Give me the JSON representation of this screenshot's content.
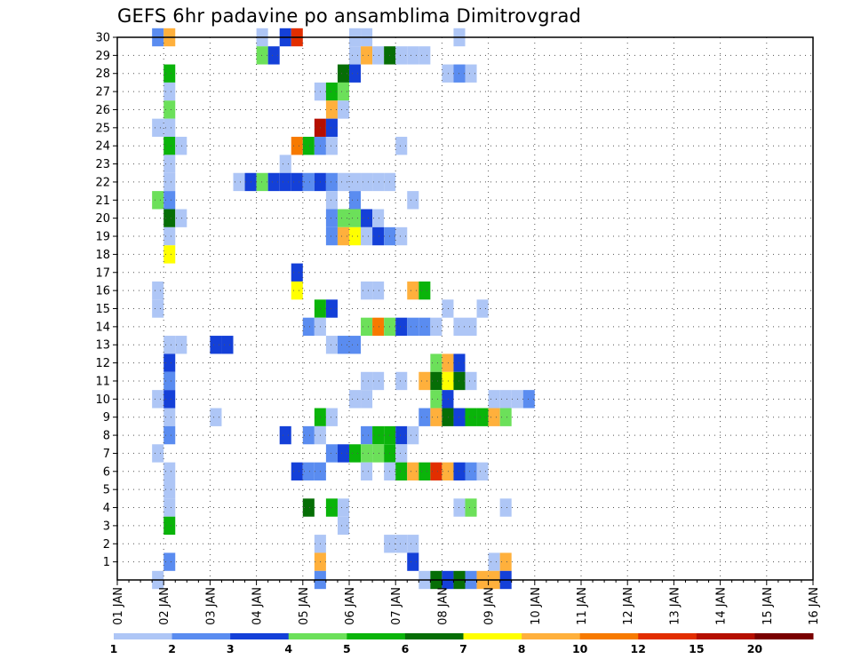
{
  "chart_data": {
    "type": "heatmap",
    "title": "GEFS 6hr padavine po ansamblima Dimitrovgrad",
    "xlabel": "",
    "ylabel": "",
    "x_tick_labels": [
      "01 JAN",
      "02 JAN",
      "03 JAN",
      "04 JAN",
      "05 JAN",
      "06 JAN",
      "07 JAN",
      "08 JAN",
      "09 JAN",
      "10 JAN",
      "11 JAN",
      "12 JAN",
      "13 JAN",
      "14 JAN",
      "15 JAN",
      "16 JAN"
    ],
    "y_tick_labels": [
      "1",
      "2",
      "3",
      "4",
      "5",
      "6",
      "7",
      "8",
      "9",
      "10",
      "11",
      "12",
      "13",
      "14",
      "15",
      "16",
      "17",
      "18",
      "19",
      "20",
      "21",
      "22",
      "23",
      "24",
      "25",
      "26",
      "27",
      "28",
      "29",
      "30"
    ],
    "x_range": [
      0,
      60
    ],
    "y_range": [
      0,
      30
    ],
    "grid": true,
    "legend": {
      "placement": "bottom",
      "labels": [
        "1",
        "2",
        "3",
        "4",
        "5",
        "6",
        "7",
        "8",
        "10",
        "12",
        "15",
        "20"
      ],
      "colors": [
        "#aec6f6",
        "#5a8cf0",
        "#1440d8",
        "#6ce05a",
        "#0ab40a",
        "#066e06",
        "#ffff00",
        "#ffb03c",
        "#f77a00",
        "#e22e00",
        "#b50f00",
        "#7a0000"
      ]
    },
    "cells": [
      [
        3,
        30,
        "#5a8cf0"
      ],
      [
        4,
        30,
        "#ffb03c"
      ],
      [
        12,
        30,
        "#aec6f6"
      ],
      [
        14,
        30,
        "#1440d8"
      ],
      [
        15,
        30,
        "#e22e00"
      ],
      [
        20,
        30,
        "#aec6f6"
      ],
      [
        21,
        30,
        "#aec6f6"
      ],
      [
        29,
        30,
        "#aec6f6"
      ],
      [
        12,
        29,
        "#6ce05a"
      ],
      [
        13,
        29,
        "#1440d8"
      ],
      [
        20,
        29,
        "#aec6f6"
      ],
      [
        21,
        29,
        "#ffb03c"
      ],
      [
        22,
        29,
        "#aec6f6"
      ],
      [
        23,
        29,
        "#066e06"
      ],
      [
        24,
        29,
        "#aec6f6"
      ],
      [
        25,
        29,
        "#aec6f6"
      ],
      [
        26,
        29,
        "#aec6f6"
      ],
      [
        4,
        28,
        "#0ab40a"
      ],
      [
        19,
        28,
        "#066e06"
      ],
      [
        20,
        28,
        "#1440d8"
      ],
      [
        28,
        28,
        "#aec6f6"
      ],
      [
        29,
        28,
        "#5a8cf0"
      ],
      [
        30,
        28,
        "#aec6f6"
      ],
      [
        4,
        27,
        "#aec6f6"
      ],
      [
        17,
        27,
        "#aec6f6"
      ],
      [
        18,
        27,
        "#0ab40a"
      ],
      [
        19,
        27,
        "#6ce05a"
      ],
      [
        4,
        26,
        "#6ce05a"
      ],
      [
        18,
        26,
        "#ffb03c"
      ],
      [
        19,
        26,
        "#aec6f6"
      ],
      [
        3,
        25,
        "#aec6f6"
      ],
      [
        4,
        25,
        "#aec6f6"
      ],
      [
        17,
        25,
        "#b50f00"
      ],
      [
        18,
        25,
        "#1440d8"
      ],
      [
        4,
        24,
        "#0ab40a"
      ],
      [
        5,
        24,
        "#aec6f6"
      ],
      [
        15,
        24,
        "#f77a00"
      ],
      [
        16,
        24,
        "#0ab40a"
      ],
      [
        17,
        24,
        "#5a8cf0"
      ],
      [
        18,
        24,
        "#aec6f6"
      ],
      [
        24,
        24,
        "#aec6f6"
      ],
      [
        4,
        23,
        "#aec6f6"
      ],
      [
        14,
        23,
        "#aec6f6"
      ],
      [
        4,
        22,
        "#aec6f6"
      ],
      [
        10,
        22,
        "#aec6f6"
      ],
      [
        11,
        22,
        "#1440d8"
      ],
      [
        12,
        22,
        "#6ce05a"
      ],
      [
        13,
        22,
        "#1440d8"
      ],
      [
        14,
        22,
        "#1440d8"
      ],
      [
        15,
        22,
        "#1440d8"
      ],
      [
        16,
        22,
        "#5a8cf0"
      ],
      [
        17,
        22,
        "#1440d8"
      ],
      [
        18,
        22,
        "#5a8cf0"
      ],
      [
        19,
        22,
        "#aec6f6"
      ],
      [
        20,
        22,
        "#aec6f6"
      ],
      [
        21,
        22,
        "#aec6f6"
      ],
      [
        22,
        22,
        "#aec6f6"
      ],
      [
        23,
        22,
        "#aec6f6"
      ],
      [
        3,
        21,
        "#6ce05a"
      ],
      [
        4,
        21,
        "#5a8cf0"
      ],
      [
        18,
        21,
        "#aec6f6"
      ],
      [
        20,
        21,
        "#5a8cf0"
      ],
      [
        25,
        21,
        "#aec6f6"
      ],
      [
        4,
        20,
        "#066e06"
      ],
      [
        5,
        20,
        "#aec6f6"
      ],
      [
        18,
        20,
        "#5a8cf0"
      ],
      [
        19,
        20,
        "#6ce05a"
      ],
      [
        20,
        20,
        "#6ce05a"
      ],
      [
        21,
        20,
        "#1440d8"
      ],
      [
        22,
        20,
        "#aec6f6"
      ],
      [
        4,
        19,
        "#aec6f6"
      ],
      [
        18,
        19,
        "#5a8cf0"
      ],
      [
        19,
        19,
        "#ffb03c"
      ],
      [
        20,
        19,
        "#ffff00"
      ],
      [
        21,
        19,
        "#aec6f6"
      ],
      [
        22,
        19,
        "#1440d8"
      ],
      [
        23,
        19,
        "#5a8cf0"
      ],
      [
        24,
        19,
        "#aec6f6"
      ],
      [
        4,
        18,
        "#ffff00"
      ],
      [
        15,
        17,
        "#1440d8"
      ],
      [
        3,
        16,
        "#aec6f6"
      ],
      [
        15,
        16,
        "#ffff00"
      ],
      [
        21,
        16,
        "#aec6f6"
      ],
      [
        22,
        16,
        "#aec6f6"
      ],
      [
        25,
        16,
        "#ffb03c"
      ],
      [
        26,
        16,
        "#0ab40a"
      ],
      [
        3,
        15,
        "#aec6f6"
      ],
      [
        17,
        15,
        "#0ab40a"
      ],
      [
        18,
        15,
        "#1440d8"
      ],
      [
        28,
        15,
        "#aec6f6"
      ],
      [
        31,
        15,
        "#aec6f6"
      ],
      [
        16,
        14,
        "#5a8cf0"
      ],
      [
        17,
        14,
        "#aec6f6"
      ],
      [
        21,
        14,
        "#6ce05a"
      ],
      [
        22,
        14,
        "#f77a00"
      ],
      [
        23,
        14,
        "#6ce05a"
      ],
      [
        24,
        14,
        "#1440d8"
      ],
      [
        25,
        14,
        "#5a8cf0"
      ],
      [
        26,
        14,
        "#5a8cf0"
      ],
      [
        27,
        14,
        "#aec6f6"
      ],
      [
        29,
        14,
        "#aec6f6"
      ],
      [
        30,
        14,
        "#aec6f6"
      ],
      [
        4,
        13,
        "#aec6f6"
      ],
      [
        5,
        13,
        "#aec6f6"
      ],
      [
        8,
        13,
        "#1440d8"
      ],
      [
        9,
        13,
        "#1440d8"
      ],
      [
        18,
        13,
        "#aec6f6"
      ],
      [
        19,
        13,
        "#5a8cf0"
      ],
      [
        20,
        13,
        "#5a8cf0"
      ],
      [
        4,
        12,
        "#1440d8"
      ],
      [
        27,
        12,
        "#6ce05a"
      ],
      [
        28,
        12,
        "#ffb03c"
      ],
      [
        29,
        12,
        "#1440d8"
      ],
      [
        4,
        11,
        "#5a8cf0"
      ],
      [
        21,
        11,
        "#aec6f6"
      ],
      [
        22,
        11,
        "#aec6f6"
      ],
      [
        24,
        11,
        "#aec6f6"
      ],
      [
        26,
        11,
        "#ffb03c"
      ],
      [
        27,
        11,
        "#066e06"
      ],
      [
        28,
        11,
        "#ffff00"
      ],
      [
        29,
        11,
        "#066e06"
      ],
      [
        30,
        11,
        "#aec6f6"
      ],
      [
        3,
        10,
        "#aec6f6"
      ],
      [
        4,
        10,
        "#1440d8"
      ],
      [
        20,
        10,
        "#aec6f6"
      ],
      [
        21,
        10,
        "#aec6f6"
      ],
      [
        27,
        10,
        "#6ce05a"
      ],
      [
        28,
        10,
        "#1440d8"
      ],
      [
        32,
        10,
        "#aec6f6"
      ],
      [
        33,
        10,
        "#aec6f6"
      ],
      [
        34,
        10,
        "#aec6f6"
      ],
      [
        35,
        10,
        "#5a8cf0"
      ],
      [
        4,
        9,
        "#aec6f6"
      ],
      [
        8,
        9,
        "#aec6f6"
      ],
      [
        17,
        9,
        "#0ab40a"
      ],
      [
        18,
        9,
        "#aec6f6"
      ],
      [
        26,
        9,
        "#5a8cf0"
      ],
      [
        27,
        9,
        "#ffb03c"
      ],
      [
        28,
        9,
        "#066e06"
      ],
      [
        29,
        9,
        "#1440d8"
      ],
      [
        30,
        9,
        "#0ab40a"
      ],
      [
        31,
        9,
        "#0ab40a"
      ],
      [
        32,
        9,
        "#ffb03c"
      ],
      [
        33,
        9,
        "#6ce05a"
      ],
      [
        4,
        8,
        "#5a8cf0"
      ],
      [
        14,
        8,
        "#1440d8"
      ],
      [
        16,
        8,
        "#5a8cf0"
      ],
      [
        17,
        8,
        "#aec6f6"
      ],
      [
        21,
        8,
        "#5a8cf0"
      ],
      [
        22,
        8,
        "#0ab40a"
      ],
      [
        23,
        8,
        "#0ab40a"
      ],
      [
        24,
        8,
        "#1440d8"
      ],
      [
        25,
        8,
        "#aec6f6"
      ],
      [
        3,
        7,
        "#aec6f6"
      ],
      [
        18,
        7,
        "#5a8cf0"
      ],
      [
        19,
        7,
        "#1440d8"
      ],
      [
        20,
        7,
        "#0ab40a"
      ],
      [
        21,
        7,
        "#6ce05a"
      ],
      [
        22,
        7,
        "#6ce05a"
      ],
      [
        23,
        7,
        "#0ab40a"
      ],
      [
        24,
        7,
        "#aec6f6"
      ],
      [
        4,
        6,
        "#aec6f6"
      ],
      [
        15,
        6,
        "#1440d8"
      ],
      [
        16,
        6,
        "#5a8cf0"
      ],
      [
        17,
        6,
        "#5a8cf0"
      ],
      [
        21,
        6,
        "#aec6f6"
      ],
      [
        23,
        6,
        "#aec6f6"
      ],
      [
        24,
        6,
        "#0ab40a"
      ],
      [
        25,
        6,
        "#ffb03c"
      ],
      [
        26,
        6,
        "#0ab40a"
      ],
      [
        27,
        6,
        "#e22e00"
      ],
      [
        28,
        6,
        "#ffb03c"
      ],
      [
        29,
        6,
        "#1440d8"
      ],
      [
        30,
        6,
        "#5a8cf0"
      ],
      [
        31,
        6,
        "#aec6f6"
      ],
      [
        4,
        5,
        "#aec6f6"
      ],
      [
        4,
        4,
        "#aec6f6"
      ],
      [
        16,
        4,
        "#066e06"
      ],
      [
        18,
        4,
        "#0ab40a"
      ],
      [
        19,
        4,
        "#aec6f6"
      ],
      [
        29,
        4,
        "#aec6f6"
      ],
      [
        30,
        4,
        "#6ce05a"
      ],
      [
        33,
        4,
        "#aec6f6"
      ],
      [
        4,
        3,
        "#0ab40a"
      ],
      [
        19,
        3,
        "#aec6f6"
      ],
      [
        17,
        2,
        "#aec6f6"
      ],
      [
        23,
        2,
        "#aec6f6"
      ],
      [
        24,
        2,
        "#aec6f6"
      ],
      [
        25,
        2,
        "#aec6f6"
      ],
      [
        4,
        1,
        "#5a8cf0"
      ],
      [
        17,
        1,
        "#ffb03c"
      ],
      [
        25,
        1,
        "#1440d8"
      ],
      [
        32,
        1,
        "#aec6f6"
      ],
      [
        33,
        1,
        "#ffb03c"
      ],
      [
        3,
        0,
        "#aec6f6"
      ],
      [
        17,
        0,
        "#5a8cf0"
      ],
      [
        26,
        0,
        "#aec6f6"
      ],
      [
        27,
        0,
        "#066e06"
      ],
      [
        28,
        0,
        "#1440d8"
      ],
      [
        29,
        0,
        "#066e06"
      ],
      [
        30,
        0,
        "#5a8cf0"
      ],
      [
        31,
        0,
        "#ffb03c"
      ],
      [
        32,
        0,
        "#ffb03c"
      ],
      [
        33,
        0,
        "#1440d8"
      ]
    ]
  }
}
